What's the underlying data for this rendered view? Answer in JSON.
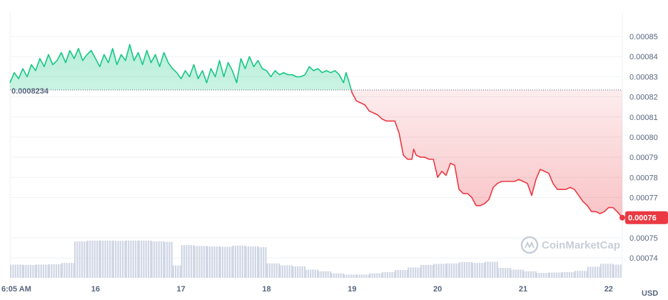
{
  "chart_data": {
    "type": "line",
    "baseline": 0.0008234,
    "baseline_label": "0.0008234",
    "last_value": 0.00076,
    "last_label": "0.00076",
    "currency": "USD",
    "watermark": "CoinMarketCap",
    "ylim": [
      0.000734,
      0.000861
    ],
    "yticks": [
      {
        "v": 0.00085,
        "label": "0.00085"
      },
      {
        "v": 0.00084,
        "label": "0.00084"
      },
      {
        "v": 0.00083,
        "label": "0.00083"
      },
      {
        "v": 0.00082,
        "label": "0.00082"
      },
      {
        "v": 0.00081,
        "label": "0.00081"
      },
      {
        "v": 0.0008,
        "label": "0.00080"
      },
      {
        "v": 0.00079,
        "label": "0.00079"
      },
      {
        "v": 0.00078,
        "label": "0.00078"
      },
      {
        "v": 0.00077,
        "label": "0.00077"
      },
      {
        "v": 0.00075,
        "label": "0.00075"
      },
      {
        "v": 0.00074,
        "label": "0.00074"
      }
    ],
    "x_start": 15.0,
    "x_end": 22.16,
    "xticks": [
      {
        "v": 15.0,
        "label": "6:05 AM"
      },
      {
        "v": 16.0,
        "label": "16"
      },
      {
        "v": 17.0,
        "label": "17"
      },
      {
        "v": 18.0,
        "label": "18"
      },
      {
        "v": 19.0,
        "label": "19"
      },
      {
        "v": 20.0,
        "label": "20"
      },
      {
        "v": 21.0,
        "label": "21"
      },
      {
        "v": 22.0,
        "label": "22"
      }
    ],
    "colors": {
      "up": "#16c784",
      "down": "#ea3943",
      "grid": "#eff2f5",
      "volume": "#cfd6e4",
      "baseline": "#58667e"
    },
    "series": [
      {
        "values": [
          [
            15.0,
            0.000827
          ],
          [
            15.05,
            0.000832
          ],
          [
            15.1,
            0.000829
          ],
          [
            15.15,
            0.000834
          ],
          [
            15.2,
            0.00083
          ],
          [
            15.25,
            0.000836
          ],
          [
            15.3,
            0.000833
          ],
          [
            15.35,
            0.000839
          ],
          [
            15.4,
            0.000835
          ],
          [
            15.45,
            0.000841
          ],
          [
            15.5,
            0.000836
          ],
          [
            15.55,
            0.000838
          ],
          [
            15.6,
            0.000842
          ],
          [
            15.65,
            0.000837
          ],
          [
            15.7,
            0.000843
          ],
          [
            15.75,
            0.000839
          ],
          [
            15.8,
            0.000844
          ],
          [
            15.85,
            0.000838
          ],
          [
            15.9,
            0.000841
          ],
          [
            15.95,
            0.000843
          ],
          [
            16.0,
            0.000839
          ],
          [
            16.05,
            0.000835
          ],
          [
            16.1,
            0.000841
          ],
          [
            16.15,
            0.000837
          ],
          [
            16.2,
            0.000844
          ],
          [
            16.25,
            0.000836
          ],
          [
            16.3,
            0.000841
          ],
          [
            16.35,
            0.000838
          ],
          [
            16.4,
            0.000846
          ],
          [
            16.45,
            0.000838
          ],
          [
            16.5,
            0.000842
          ],
          [
            16.55,
            0.000836
          ],
          [
            16.6,
            0.000843
          ],
          [
            16.65,
            0.000837
          ],
          [
            16.7,
            0.000841
          ],
          [
            16.75,
            0.000835
          ],
          [
            16.8,
            0.000842
          ],
          [
            16.85,
            0.000837
          ],
          [
            16.9,
            0.000834
          ],
          [
            16.95,
            0.000832
          ],
          [
            17.0,
            0.000829
          ],
          [
            17.05,
            0.000833
          ],
          [
            17.1,
            0.00083
          ],
          [
            17.15,
            0.000836
          ],
          [
            17.2,
            0.000829
          ],
          [
            17.25,
            0.000833
          ],
          [
            17.3,
            0.000827
          ],
          [
            17.35,
            0.000834
          ],
          [
            17.4,
            0.00083
          ],
          [
            17.45,
            0.000838
          ],
          [
            17.5,
            0.00083
          ],
          [
            17.55,
            0.000837
          ],
          [
            17.6,
            0.000833
          ],
          [
            17.65,
            0.000827
          ],
          [
            17.7,
            0.000839
          ],
          [
            17.75,
            0.000834
          ],
          [
            17.8,
            0.00084
          ],
          [
            17.85,
            0.000835
          ],
          [
            17.9,
            0.000838
          ],
          [
            17.95,
            0.000834
          ],
          [
            18.0,
            0.000833
          ],
          [
            18.05,
            0.00083
          ],
          [
            18.1,
            0.000833
          ],
          [
            18.15,
            0.000831
          ],
          [
            18.2,
            0.000832
          ],
          [
            18.25,
            0.000831
          ],
          [
            18.3,
            0.000831
          ],
          [
            18.35,
            0.00083
          ],
          [
            18.4,
            0.00083
          ],
          [
            18.45,
            0.000831
          ],
          [
            18.5,
            0.000835
          ],
          [
            18.55,
            0.000833
          ],
          [
            18.6,
            0.000834
          ],
          [
            18.65,
            0.000832
          ],
          [
            18.7,
            0.000833
          ],
          [
            18.75,
            0.000832
          ],
          [
            18.8,
            0.000833
          ],
          [
            18.85,
            0.000831
          ],
          [
            18.9,
            0.000827
          ],
          [
            18.93,
            0.000832
          ],
          [
            18.96,
            0.000828
          ],
          [
            19.0,
            0.000822
          ],
          [
            19.05,
            0.000818
          ],
          [
            19.1,
            0.000817
          ],
          [
            19.15,
            0.000816
          ],
          [
            19.2,
            0.000813
          ],
          [
            19.25,
            0.000812
          ],
          [
            19.3,
            0.000811
          ],
          [
            19.35,
            0.000809
          ],
          [
            19.4,
            0.000808
          ],
          [
            19.45,
            0.000808
          ],
          [
            19.5,
            0.000808
          ],
          [
            19.55,
            0.000802
          ],
          [
            19.6,
            0.000791
          ],
          [
            19.65,
            0.000789
          ],
          [
            19.7,
            0.000789
          ],
          [
            19.72,
            0.000794
          ],
          [
            19.75,
            0.000791
          ],
          [
            19.8,
            0.00079
          ],
          [
            19.85,
            0.00079
          ],
          [
            19.9,
            0.000789
          ],
          [
            19.95,
            0.000789
          ],
          [
            20.0,
            0.00078
          ],
          [
            20.05,
            0.000783
          ],
          [
            20.1,
            0.000781
          ],
          [
            20.15,
            0.000787
          ],
          [
            20.2,
            0.000786
          ],
          [
            20.25,
            0.000774
          ],
          [
            20.3,
            0.000772
          ],
          [
            20.35,
            0.000772
          ],
          [
            20.4,
            0.00077
          ],
          [
            20.45,
            0.000766
          ],
          [
            20.5,
            0.000766
          ],
          [
            20.55,
            0.000767
          ],
          [
            20.6,
            0.000769
          ],
          [
            20.65,
            0.000775
          ],
          [
            20.7,
            0.000777
          ],
          [
            20.75,
            0.000778
          ],
          [
            20.8,
            0.000778
          ],
          [
            20.85,
            0.000778
          ],
          [
            20.9,
            0.000778
          ],
          [
            20.95,
            0.000779
          ],
          [
            21.0,
            0.000778
          ],
          [
            21.05,
            0.000777
          ],
          [
            21.1,
            0.000771
          ],
          [
            21.15,
            0.000779
          ],
          [
            21.2,
            0.000784
          ],
          [
            21.25,
            0.000783
          ],
          [
            21.3,
            0.000782
          ],
          [
            21.35,
            0.000777
          ],
          [
            21.4,
            0.000774
          ],
          [
            21.45,
            0.000774
          ],
          [
            21.5,
            0.000774
          ],
          [
            21.55,
            0.000775
          ],
          [
            21.6,
            0.000774
          ],
          [
            21.65,
            0.000771
          ],
          [
            21.7,
            0.000768
          ],
          [
            21.75,
            0.000766
          ],
          [
            21.8,
            0.000763
          ],
          [
            21.85,
            0.000763
          ],
          [
            21.9,
            0.000762
          ],
          [
            21.95,
            0.000763
          ],
          [
            22.0,
            0.000765
          ],
          [
            22.05,
            0.000765
          ],
          [
            22.1,
            0.000763
          ],
          [
            22.16,
            0.00076
          ]
        ]
      }
    ],
    "volume": [
      [
        15.0,
        0.32
      ],
      [
        15.15,
        0.31
      ],
      [
        15.3,
        0.32
      ],
      [
        15.45,
        0.33
      ],
      [
        15.6,
        0.36
      ],
      [
        15.75,
        0.88
      ],
      [
        15.9,
        0.9
      ],
      [
        16.05,
        0.9
      ],
      [
        16.2,
        0.89
      ],
      [
        16.35,
        0.9
      ],
      [
        16.5,
        0.9
      ],
      [
        16.65,
        0.88
      ],
      [
        16.8,
        0.87
      ],
      [
        16.9,
        0.3
      ],
      [
        17.0,
        0.79
      ],
      [
        17.15,
        0.77
      ],
      [
        17.3,
        0.76
      ],
      [
        17.45,
        0.75
      ],
      [
        17.6,
        0.78
      ],
      [
        17.75,
        0.76
      ],
      [
        17.9,
        0.74
      ],
      [
        18.0,
        0.35
      ],
      [
        18.15,
        0.3
      ],
      [
        18.3,
        0.28
      ],
      [
        18.45,
        0.2
      ],
      [
        18.6,
        0.16
      ],
      [
        18.75,
        0.11
      ],
      [
        18.9,
        0.08
      ],
      [
        19.05,
        0.08
      ],
      [
        19.2,
        0.11
      ],
      [
        19.35,
        0.14
      ],
      [
        19.5,
        0.19
      ],
      [
        19.65,
        0.25
      ],
      [
        19.8,
        0.31
      ],
      [
        19.95,
        0.34
      ],
      [
        20.1,
        0.35
      ],
      [
        20.25,
        0.38
      ],
      [
        20.4,
        0.36
      ],
      [
        20.55,
        0.39
      ],
      [
        20.7,
        0.24
      ],
      [
        20.85,
        0.2
      ],
      [
        21.0,
        0.16
      ],
      [
        21.15,
        0.12
      ],
      [
        21.3,
        0.13
      ],
      [
        21.45,
        0.14
      ],
      [
        21.6,
        0.17
      ],
      [
        21.75,
        0.27
      ],
      [
        21.9,
        0.34
      ],
      [
        22.05,
        0.32
      ],
      [
        22.16,
        0.35
      ]
    ]
  }
}
